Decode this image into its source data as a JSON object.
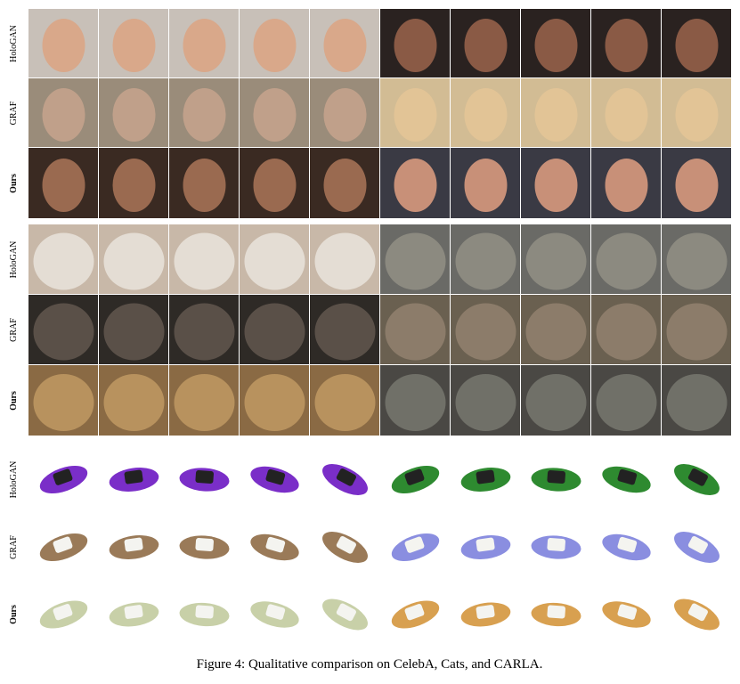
{
  "sections": [
    {
      "rows": [
        {
          "label": "HoloGAN"
        },
        {
          "label": "GRAF"
        },
        {
          "label": "Ours"
        }
      ]
    },
    {
      "rows": [
        {
          "label": "HoloGAN"
        },
        {
          "label": "GRAF"
        },
        {
          "label": "Ours"
        }
      ]
    },
    {
      "rows": [
        {
          "label": "HoloGAN"
        },
        {
          "label": "GRAF"
        },
        {
          "label": "Ours"
        }
      ]
    }
  ],
  "caption": "Figure 4: Qualitative comparison on CelebA, Cats, and CARLA."
}
